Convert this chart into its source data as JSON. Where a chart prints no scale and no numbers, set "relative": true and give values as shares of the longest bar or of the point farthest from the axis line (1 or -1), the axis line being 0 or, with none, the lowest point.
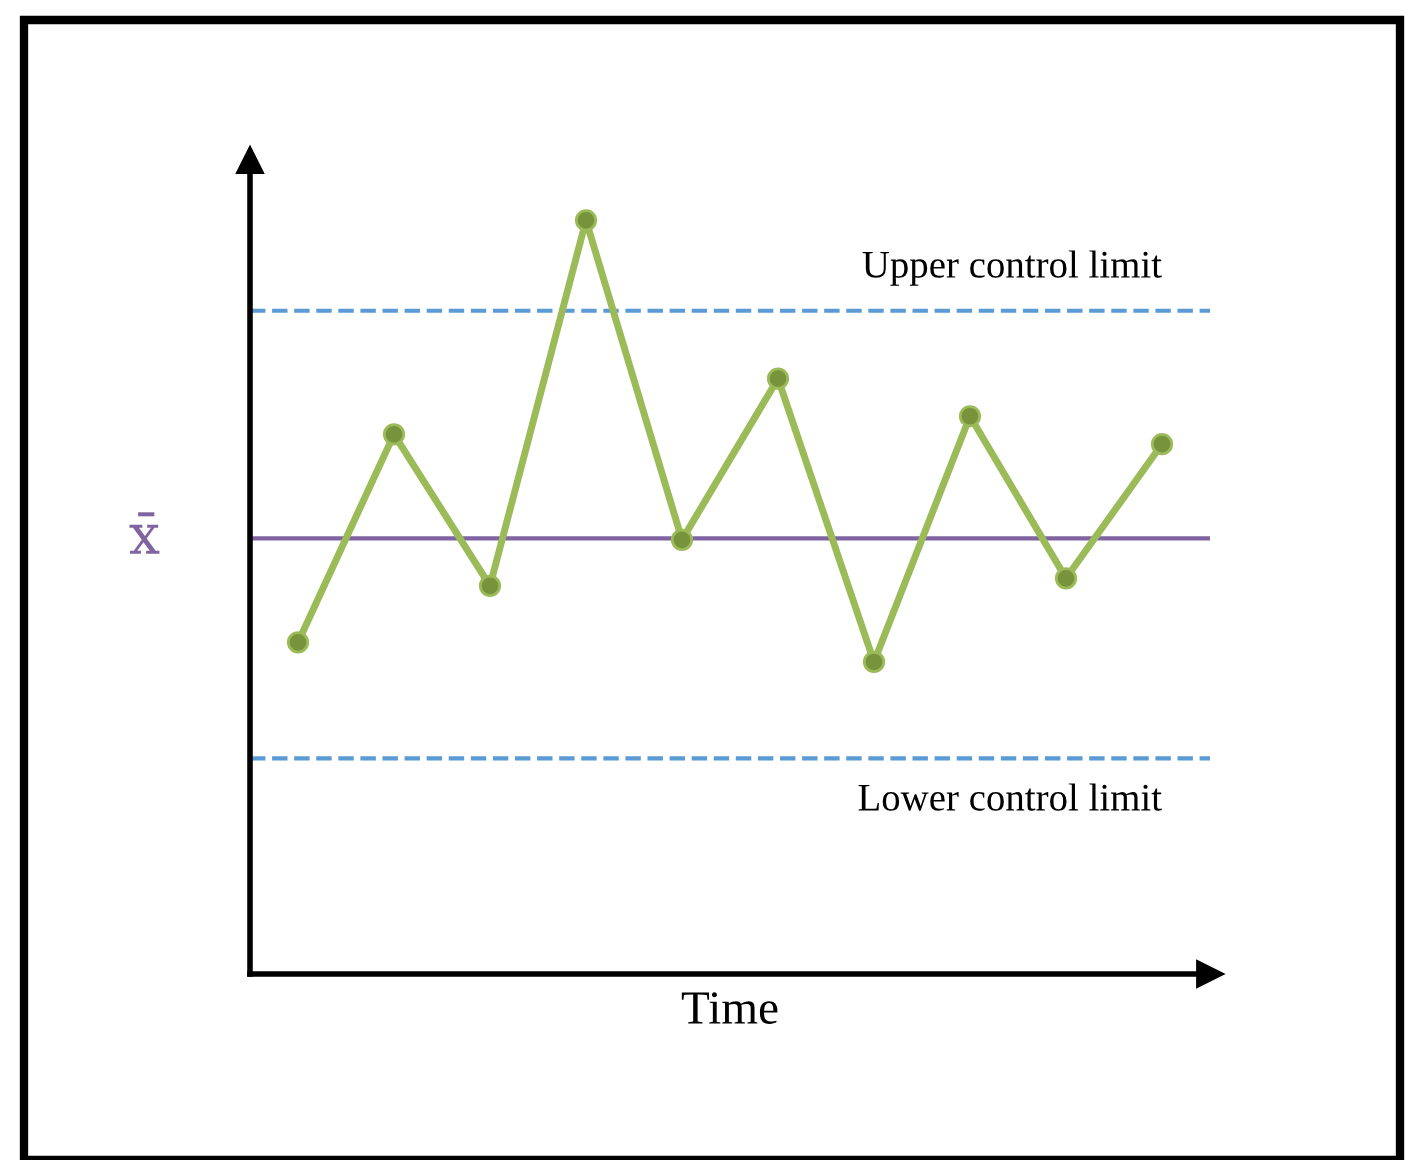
{
  "chart_data": {
    "type": "line",
    "relative": true,
    "xlabel": "Time",
    "categories": [
      null,
      null,
      null,
      null,
      null,
      null,
      null,
      null,
      null,
      null
    ],
    "series": [
      {
        "color": "#9bbb59",
        "values": [
          0.44,
          0.716,
          0.515,
          1,
          0.576,
          0.79,
          0.414,
          0.74,
          0.525,
          0.703
        ]
      }
    ],
    "marker": "circle",
    "line_style": "solid",
    "grid": false,
    "tick_labels": false,
    "ref_lines": [
      {
        "axis": "y",
        "value": 0.88,
        "label": "Upper control limit",
        "color": "#5b9bd5",
        "line_style": "dashed"
      },
      {
        "axis": "y",
        "value": 0.578,
        "label": "x̄",
        "color": "#8064a2",
        "line_style": "solid"
      },
      {
        "axis": "y",
        "value": 0.286,
        "label": "Lower control limit",
        "color": "#5b9bd5",
        "line_style": "dashed"
      }
    ]
  }
}
